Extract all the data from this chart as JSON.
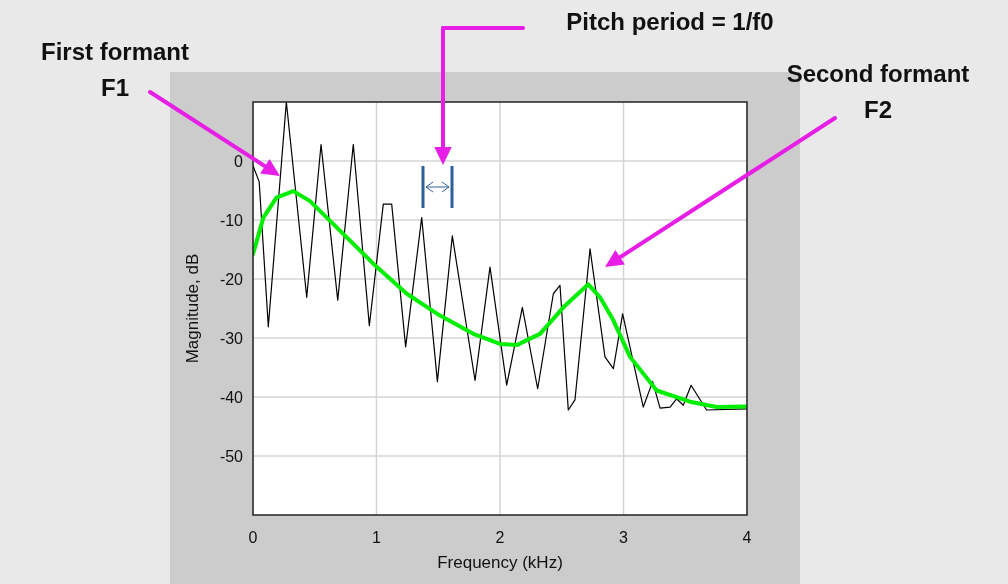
{
  "chart_data": {
    "type": "line",
    "xlabel": "Frequency (kHz)",
    "ylabel": "Magnitude, dB",
    "xlim": [
      0,
      4
    ],
    "ylim": [
      -60,
      10
    ],
    "xticks": [
      0,
      1,
      2,
      3,
      4
    ],
    "yticks": [
      0,
      -10,
      -20,
      -30,
      -40,
      -50
    ],
    "grid": true,
    "marker": "none",
    "line_style": "solid",
    "series": [
      {
        "color": "#000000",
        "x": [
          0,
          0.05,
          0.124,
          0.27,
          0.435,
          0.551,
          0.686,
          0.812,
          0.942,
          1.055,
          1.123,
          1.236,
          1.366,
          1.493,
          1.614,
          1.798,
          1.919,
          2.054,
          2.181,
          2.305,
          2.432,
          2.486,
          2.553,
          2.607,
          2.729,
          2.85,
          2.918,
          2.993,
          3.16,
          3.236,
          3.296,
          3.377,
          3.43,
          3.484,
          3.547,
          3.673,
          4
        ],
        "values": [
          -0.8,
          -3.5,
          -28.1,
          10,
          -23.1,
          2.8,
          -23.6,
          2.8,
          -27.9,
          -7.3,
          -7.3,
          -31.5,
          -9.6,
          -37.4,
          -12.7,
          -37.2,
          -18,
          -38,
          -24.8,
          -38.6,
          -22.5,
          -21.1,
          -42.2,
          -40.5,
          -14.9,
          -33.2,
          -35.2,
          -25.9,
          -41.7,
          -37.4,
          -41.9,
          -41.7,
          -40.3,
          -41.4,
          -38,
          -42.2,
          -42
        ]
      },
      {
        "color": "#00ee00",
        "x": [
          0,
          0.084,
          0.19,
          0.327,
          0.462,
          0.704,
          0.974,
          1.245,
          1.514,
          1.784,
          2.0,
          2.135,
          2.324,
          2.513,
          2.715,
          2.81,
          2.918,
          3.053,
          3.269,
          3.538,
          3.755,
          4
        ],
        "values": [
          -15.8,
          -9.6,
          -6.2,
          -5.1,
          -6.8,
          -11.8,
          -17.4,
          -22.5,
          -26.2,
          -29.3,
          -31,
          -31.2,
          -29.3,
          -24.8,
          -20.9,
          -23.1,
          -27,
          -33.2,
          -38.9,
          -40.8,
          -41.7,
          -41.6
        ]
      }
    ],
    "annotations": [
      "First formant\nF1",
      "Pitch period = 1/f0",
      "Second formant\nF2"
    ]
  }
}
